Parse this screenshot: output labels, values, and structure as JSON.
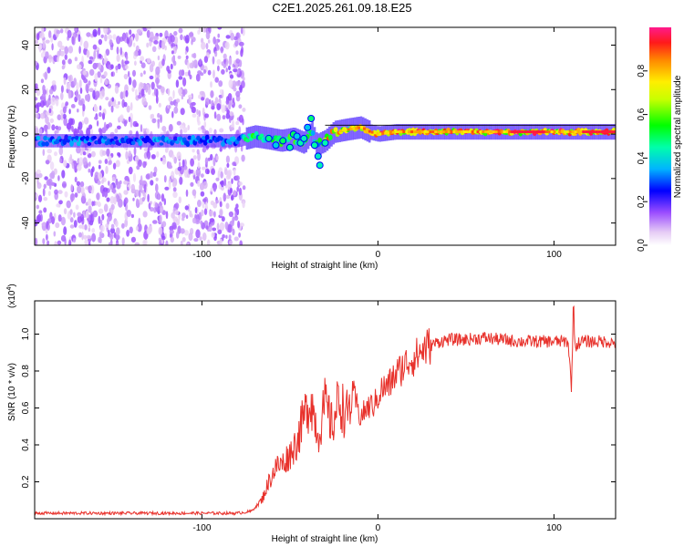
{
  "title": "C2E1.2025.261.09.18.E25",
  "chart_data": [
    {
      "type": "heatmap",
      "name": "spectrogram",
      "title": "C2E1.2025.261.09.18.E25",
      "xlabel": "Height of straight line (km)",
      "ylabel": "Frequency (Hz)",
      "xlim": [
        -195,
        135
      ],
      "ylim": [
        -50,
        48
      ],
      "xticks": [
        -100,
        0,
        100
      ],
      "xtick_labels": [
        "-100",
        "0",
        "100"
      ],
      "yticks": [
        -40,
        -20,
        0,
        20,
        40
      ],
      "ytick_labels": [
        "-40",
        "-20",
        "0",
        "20",
        "40"
      ],
      "noise_region_x": [
        -195,
        -76
      ],
      "signal_track": {
        "x": [
          -195,
          -175,
          -150,
          -125,
          -100,
          -80,
          -70,
          -62,
          -55,
          -48,
          -42,
          -38,
          -35,
          -30,
          -25,
          -18,
          -10,
          -5,
          0,
          10,
          20,
          40,
          60,
          80,
          100,
          120,
          135
        ],
        "freq": [
          -3,
          -3,
          -3,
          -3,
          -3,
          -3,
          -1,
          -2,
          -3,
          -2,
          -4,
          1,
          -5,
          -3,
          1,
          2,
          3,
          1,
          0,
          1,
          1,
          1,
          1,
          1,
          1,
          1,
          1
        ]
      },
      "colorbar": {
        "label": "Normalized spectral amplitude",
        "range": [
          0,
          1
        ],
        "ticks": [
          0.0,
          0.2,
          0.4,
          0.6,
          0.8
        ],
        "tick_labels": [
          "0.0",
          "0.2",
          "0.4",
          "0.6",
          "0.8"
        ]
      }
    },
    {
      "type": "line",
      "name": "snr",
      "xlabel": "Height of straight line (km)",
      "ylabel": "SNR (10 * v/v)",
      "y_scale_label": "(x10",
      "y_scale_exponent": "4",
      "xlim": [
        -195,
        135
      ],
      "ylim": [
        0,
        1.18
      ],
      "xticks": [
        -100,
        0,
        100
      ],
      "xtick_labels": [
        "-100",
        "0",
        "100"
      ],
      "yticks": [
        0.2,
        0.4,
        0.6,
        0.8,
        1.0
      ],
      "ytick_labels": [
        "0.2",
        "0.4",
        "0.6",
        "0.8",
        "1.0"
      ],
      "color": "#e8322c",
      "series": [
        {
          "name": "SNR",
          "x": [
            -195,
            -150,
            -100,
            -80,
            -72,
            -66,
            -62,
            -58,
            -54,
            -50,
            -46,
            -42,
            -38,
            -34,
            -30,
            -26,
            -22,
            -18,
            -14,
            -10,
            -6,
            -2,
            2,
            6,
            10,
            14,
            18,
            22,
            26,
            30,
            35,
            40,
            45,
            50,
            60,
            70,
            80,
            90,
            100,
            105,
            108,
            110,
            111,
            112,
            115,
            120,
            125,
            130,
            135
          ],
          "y": [
            0.03,
            0.03,
            0.03,
            0.03,
            0.04,
            0.1,
            0.2,
            0.28,
            0.3,
            0.35,
            0.42,
            0.55,
            0.65,
            0.45,
            0.62,
            0.5,
            0.65,
            0.55,
            0.68,
            0.55,
            0.6,
            0.62,
            0.7,
            0.72,
            0.78,
            0.82,
            0.86,
            0.88,
            0.92,
            0.94,
            0.96,
            0.97,
            0.97,
            0.97,
            0.98,
            0.97,
            0.96,
            0.96,
            0.96,
            0.96,
            0.96,
            0.7,
            1.18,
            0.93,
            0.96,
            0.96,
            0.96,
            0.96,
            0.95
          ]
        }
      ]
    }
  ]
}
